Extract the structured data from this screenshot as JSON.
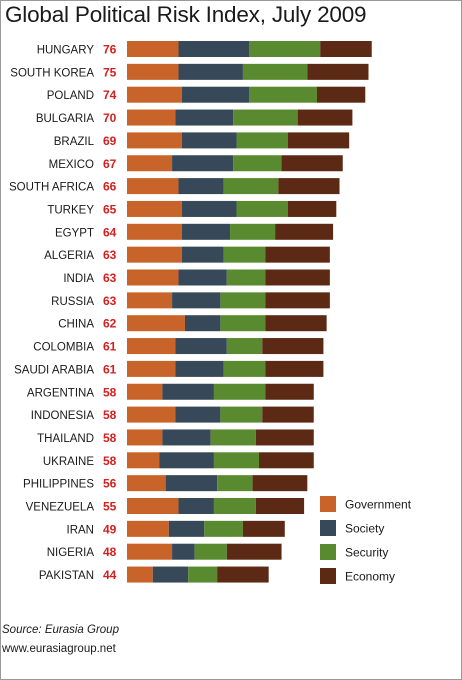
{
  "chart_data": {
    "type": "bar",
    "stacked": true,
    "orientation": "horizontal",
    "title": "Global Political Risk Index, July 2009",
    "categories": [
      "HUNGARY",
      "SOUTH KOREA",
      "POLAND",
      "BULGARIA",
      "BRAZIL",
      "MEXICO",
      "SOUTH AFRICA",
      "TURKEY",
      "EGYPT",
      "ALGERIA",
      "INDIA",
      "RUSSIA",
      "CHINA",
      "COLOMBIA",
      "SAUDI ARABIA",
      "ARGENTINA",
      "INDONESIA",
      "THAILAND",
      "UKRAINE",
      "PHILIPPINES",
      "VENEZUELA",
      "IRAN",
      "NIGERIA",
      "PAKISTAN"
    ],
    "totals": [
      76,
      75,
      74,
      70,
      69,
      67,
      66,
      65,
      64,
      63,
      63,
      63,
      62,
      61,
      61,
      58,
      58,
      58,
      58,
      56,
      55,
      49,
      48,
      44
    ],
    "series": [
      {
        "name": "Government",
        "color": "#c8632a",
        "values": [
          16,
          16,
          17,
          15,
          17,
          14,
          16,
          17,
          17,
          17,
          16,
          14,
          18,
          15,
          15,
          11,
          15,
          11,
          10,
          12,
          16,
          13,
          14,
          8
        ]
      },
      {
        "name": "Society",
        "color": "#374858",
        "values": [
          22,
          20,
          21,
          18,
          17,
          19,
          14,
          17,
          15,
          13,
          15,
          15,
          11,
          16,
          15,
          16,
          14,
          15,
          17,
          16,
          11,
          11,
          7,
          11
        ]
      },
      {
        "name": "Security",
        "color": "#5a8a2f",
        "values": [
          22,
          20,
          21,
          20,
          16,
          15,
          17,
          16,
          14,
          13,
          12,
          14,
          14,
          11,
          13,
          16,
          13,
          14,
          14,
          11,
          13,
          12,
          10,
          9
        ]
      },
      {
        "name": "Economy",
        "color": "#5c2a14",
        "values": [
          16,
          19,
          15,
          17,
          19,
          19,
          19,
          15,
          18,
          20,
          20,
          20,
          19,
          19,
          18,
          15,
          16,
          18,
          17,
          17,
          15,
          13,
          17,
          16
        ]
      }
    ],
    "legend_position": "bottom-right",
    "total_label_color": "#d3201e"
  },
  "footer": {
    "source": "Source: Eurasia Group",
    "url": "www.eurasiagroup.net"
  }
}
